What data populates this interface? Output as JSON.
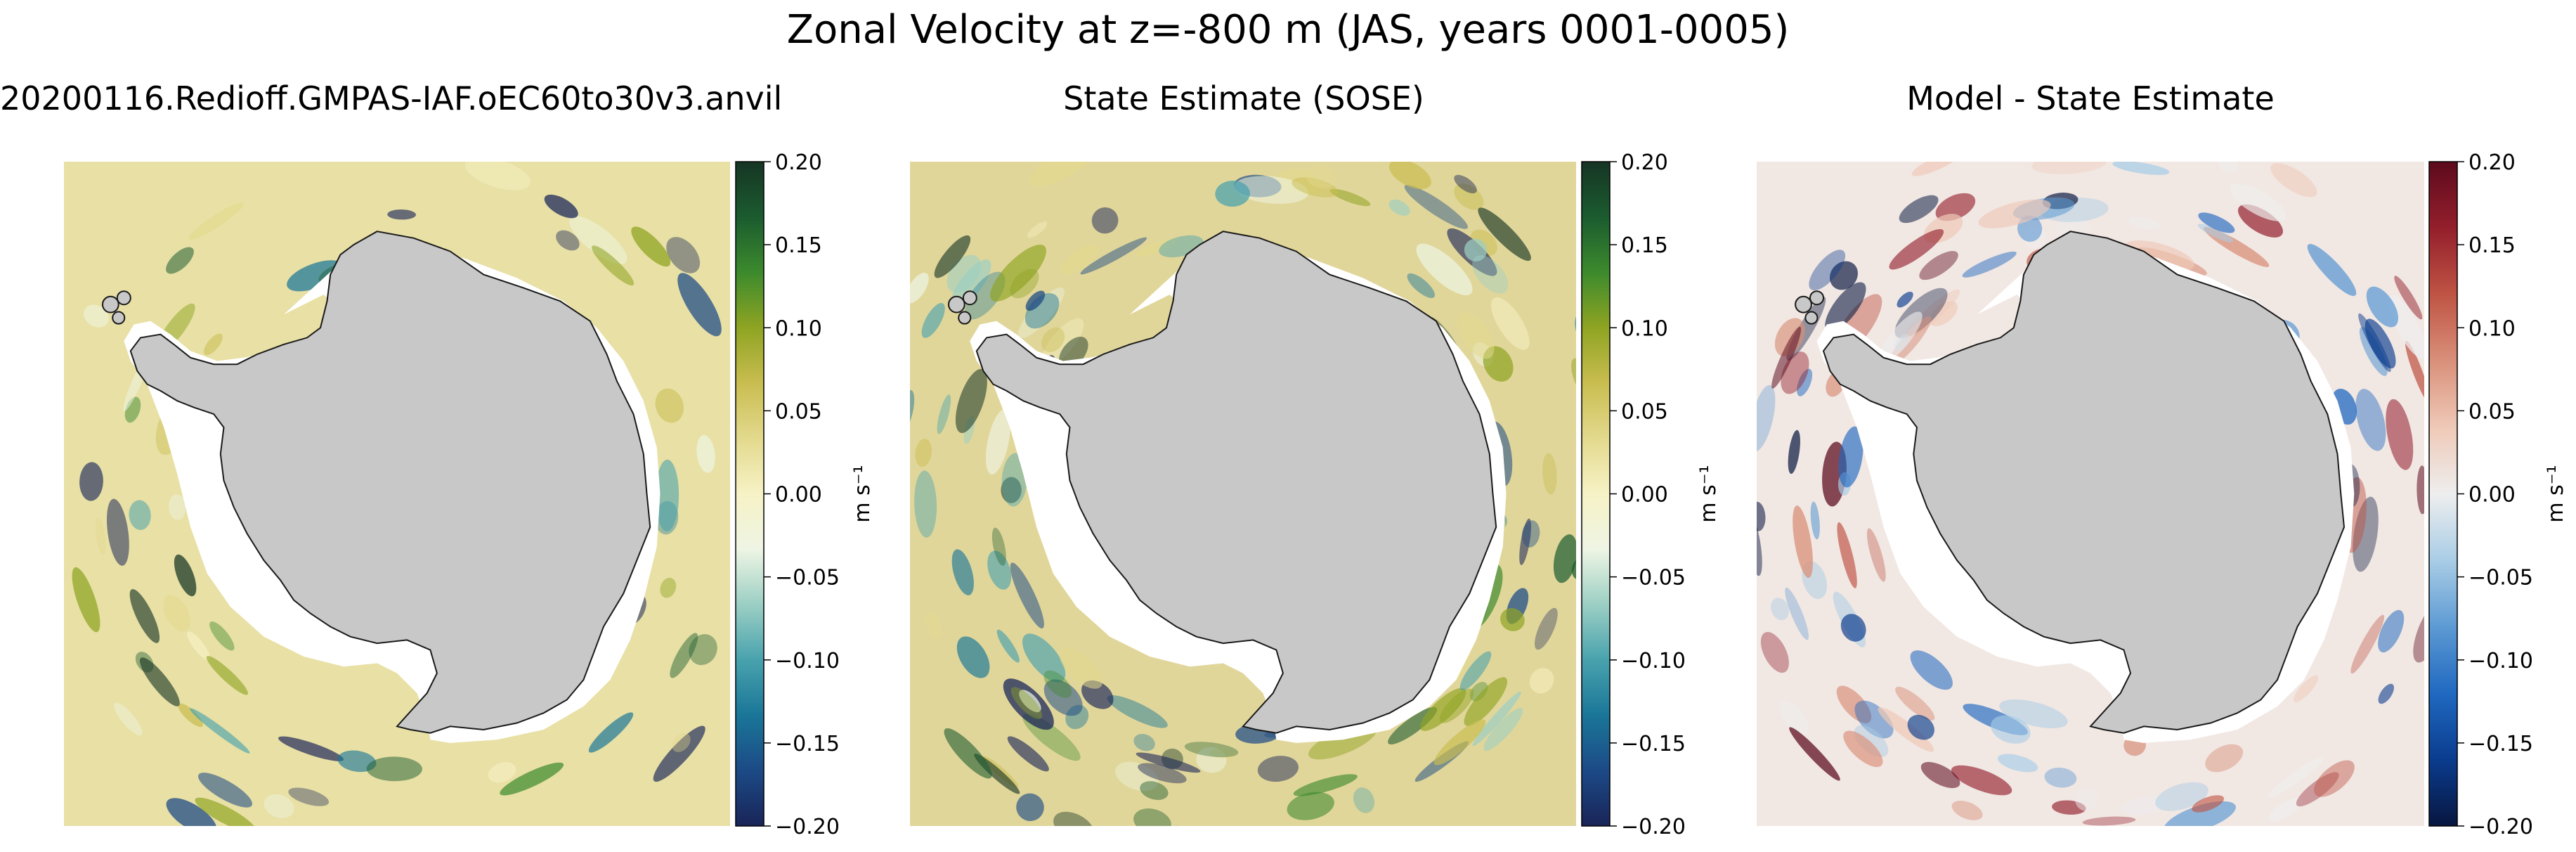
{
  "chart_data": {
    "suptitle": "Zonal Velocity at z=-800 m (JAS, years 0001-0005)",
    "panels": [
      {
        "type": "heatmap",
        "title": "20200116.Redioff.GMPAS-IAF.oEC60to30v3.anvil",
        "colormap": "ocean-green",
        "colorbar": {
          "vmin": -0.2,
          "vmax": 0.2,
          "ticks": [
            0.2,
            0.15,
            0.1,
            0.05,
            0.0,
            -0.05,
            -0.1,
            -0.15,
            -0.2
          ],
          "tick_labels": [
            "0.20",
            "0.15",
            "0.10",
            "0.05",
            "0.00",
            "−0.05",
            "−0.10",
            "−0.15",
            "−0.20"
          ],
          "label": "m s⁻¹"
        }
      },
      {
        "type": "heatmap",
        "title": "State Estimate (SOSE)",
        "colormap": "ocean-green",
        "colorbar": {
          "vmin": -0.2,
          "vmax": 0.2,
          "ticks": [
            0.2,
            0.15,
            0.1,
            0.05,
            0.0,
            -0.05,
            -0.1,
            -0.15,
            -0.2
          ],
          "tick_labels": [
            "0.20",
            "0.15",
            "0.10",
            "0.05",
            "0.00",
            "−0.05",
            "−0.10",
            "−0.15",
            "−0.20"
          ],
          "label": "m s⁻¹"
        }
      },
      {
        "type": "heatmap",
        "title": "Model - State Estimate",
        "colormap": "diverging-red-blue",
        "colorbar": {
          "vmin": -0.2,
          "vmax": 0.2,
          "ticks": [
            0.2,
            0.15,
            0.1,
            0.05,
            0.0,
            -0.05,
            -0.1,
            -0.15,
            -0.2
          ],
          "tick_labels": [
            "0.20",
            "0.15",
            "0.10",
            "0.05",
            "0.00",
            "−0.05",
            "−0.10",
            "−0.15",
            "−0.20"
          ],
          "label": "m s⁻¹"
        }
      }
    ]
  },
  "colors": {
    "land": "#c8c8c8",
    "coast": "#1a1a1a",
    "ice_shelf": "#ffffff"
  }
}
